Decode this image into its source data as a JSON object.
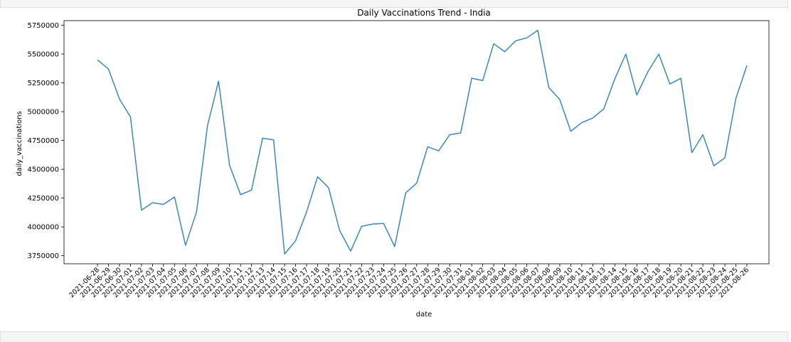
{
  "chart_data": {
    "type": "line",
    "title": "Daily Vaccinations Trend - India",
    "xlabel": "date",
    "ylabel": "daily_vaccinations",
    "ylim": [
      3680000,
      5790000
    ],
    "yticks": [
      3750000,
      4000000,
      4250000,
      4500000,
      4750000,
      5000000,
      5250000,
      5500000,
      5750000
    ],
    "grid": false,
    "line_color": "#3a87c0",
    "x": [
      "2021-06-28",
      "2021-06-29",
      "2021-06-30",
      "2021-07-01",
      "2021-07-02",
      "2021-07-03",
      "2021-07-04",
      "2021-07-05",
      "2021-07-06",
      "2021-07-07",
      "2021-07-08",
      "2021-07-09",
      "2021-07-10",
      "2021-07-11",
      "2021-07-12",
      "2021-07-13",
      "2021-07-14",
      "2021-07-15",
      "2021-07-16",
      "2021-07-17",
      "2021-07-18",
      "2021-07-19",
      "2021-07-20",
      "2021-07-21",
      "2021-07-22",
      "2021-07-23",
      "2021-07-24",
      "2021-07-25",
      "2021-07-26",
      "2021-07-27",
      "2021-07-28",
      "2021-07-29",
      "2021-07-30",
      "2021-07-31",
      "2021-08-01",
      "2021-08-02",
      "2021-08-03",
      "2021-08-04",
      "2021-08-05",
      "2021-08-06",
      "2021-08-07",
      "2021-08-08",
      "2021-08-09",
      "2021-08-10",
      "2021-08-11",
      "2021-08-12",
      "2021-08-13",
      "2021-08-14",
      "2021-08-15",
      "2021-08-16",
      "2021-08-17",
      "2021-08-18",
      "2021-08-19",
      "2021-08-20",
      "2021-08-21",
      "2021-08-22",
      "2021-08-23",
      "2021-08-24",
      "2021-08-25",
      "2021-08-26"
    ],
    "values": [
      5450000,
      5370000,
      5110000,
      4955000,
      4145000,
      4210000,
      4195000,
      4260000,
      3840000,
      4130000,
      4880000,
      5265000,
      4535000,
      4280000,
      4320000,
      4770000,
      4755000,
      3765000,
      3880000,
      4130000,
      4435000,
      4340000,
      3970000,
      3790000,
      4005000,
      4025000,
      4030000,
      3830000,
      4295000,
      4380000,
      4695000,
      4660000,
      4800000,
      4815000,
      5290000,
      5270000,
      5590000,
      5520000,
      5615000,
      5640000,
      5705000,
      5210000,
      5105000,
      4830000,
      4905000,
      4945000,
      5025000,
      5285000,
      5500000,
      5145000,
      5345000,
      5500000,
      5240000,
      5290000,
      4645000,
      4800000,
      4530000,
      4600000,
      5115000,
      5400000
    ]
  }
}
